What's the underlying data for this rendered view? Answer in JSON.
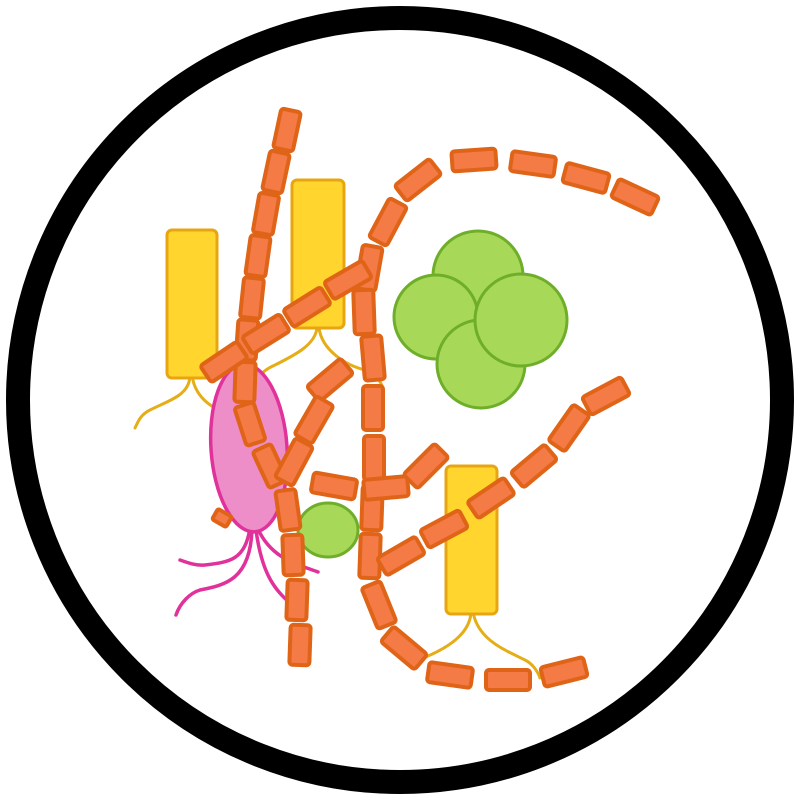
{
  "image": {
    "description_visible_text": "",
    "colors": {
      "background": "#ffffff",
      "frame": "#000000",
      "chain_fill": "#f47a46",
      "chain_stroke": "#e06418",
      "rod_fill": "#ffd52e",
      "rod_stroke": "#e8a512",
      "flagella_yellow": "#e5ad16",
      "coccus_fill": "#a8d858",
      "coccus_stroke": "#6fae2a",
      "pink_fill": "#ee8ec8",
      "pink_stroke": "#e0329a"
    },
    "organisms": [
      {
        "type": "petri-dish-outline"
      },
      {
        "type": "bacillus-chain",
        "count": 5
      },
      {
        "type": "yellow-rod-bacterium",
        "count": 3
      },
      {
        "type": "green-coccus-cluster",
        "cells": 5
      },
      {
        "type": "green-coccus-single",
        "count": 1
      },
      {
        "type": "pink-flagellated-bacterium",
        "count": 1
      }
    ]
  }
}
